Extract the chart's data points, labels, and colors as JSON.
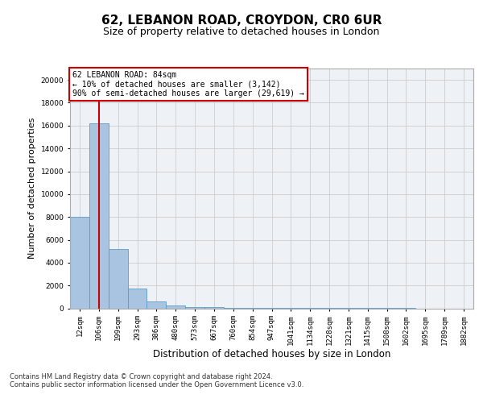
{
  "title_line1": "62, LEBANON ROAD, CROYDON, CR0 6UR",
  "title_line2": "Size of property relative to detached houses in London",
  "xlabel": "Distribution of detached houses by size in London",
  "ylabel": "Number of detached properties",
  "categories": [
    "12sqm",
    "106sqm",
    "199sqm",
    "293sqm",
    "386sqm",
    "480sqm",
    "573sqm",
    "667sqm",
    "760sqm",
    "854sqm",
    "947sqm",
    "1041sqm",
    "1134sqm",
    "1228sqm",
    "1321sqm",
    "1415sqm",
    "1508sqm",
    "1602sqm",
    "1695sqm",
    "1789sqm",
    "1882sqm"
  ],
  "values": [
    8000,
    16200,
    5200,
    1700,
    600,
    250,
    120,
    80,
    60,
    40,
    20,
    10,
    5,
    3,
    2,
    1,
    1,
    1,
    0,
    0,
    0
  ],
  "bar_color": "#a8c4e0",
  "bar_edge_color": "#5a9bc8",
  "vline_x": 1,
  "vline_color": "#cc0000",
  "annotation_text": "62 LEBANON ROAD: 84sqm\n← 10% of detached houses are smaller (3,142)\n90% of semi-detached houses are larger (29,619) →",
  "annotation_box_color": "#cc0000",
  "ylim": [
    0,
    21000
  ],
  "yticks": [
    0,
    2000,
    4000,
    6000,
    8000,
    10000,
    12000,
    14000,
    16000,
    18000,
    20000
  ],
  "grid_color": "#cccccc",
  "bg_color": "#eef2f7",
  "footer_text": "Contains HM Land Registry data © Crown copyright and database right 2024.\nContains public sector information licensed under the Open Government Licence v3.0.",
  "title_fontsize": 11,
  "subtitle_fontsize": 9,
  "tick_fontsize": 6.5,
  "ylabel_fontsize": 8,
  "xlabel_fontsize": 8.5,
  "footer_fontsize": 6
}
